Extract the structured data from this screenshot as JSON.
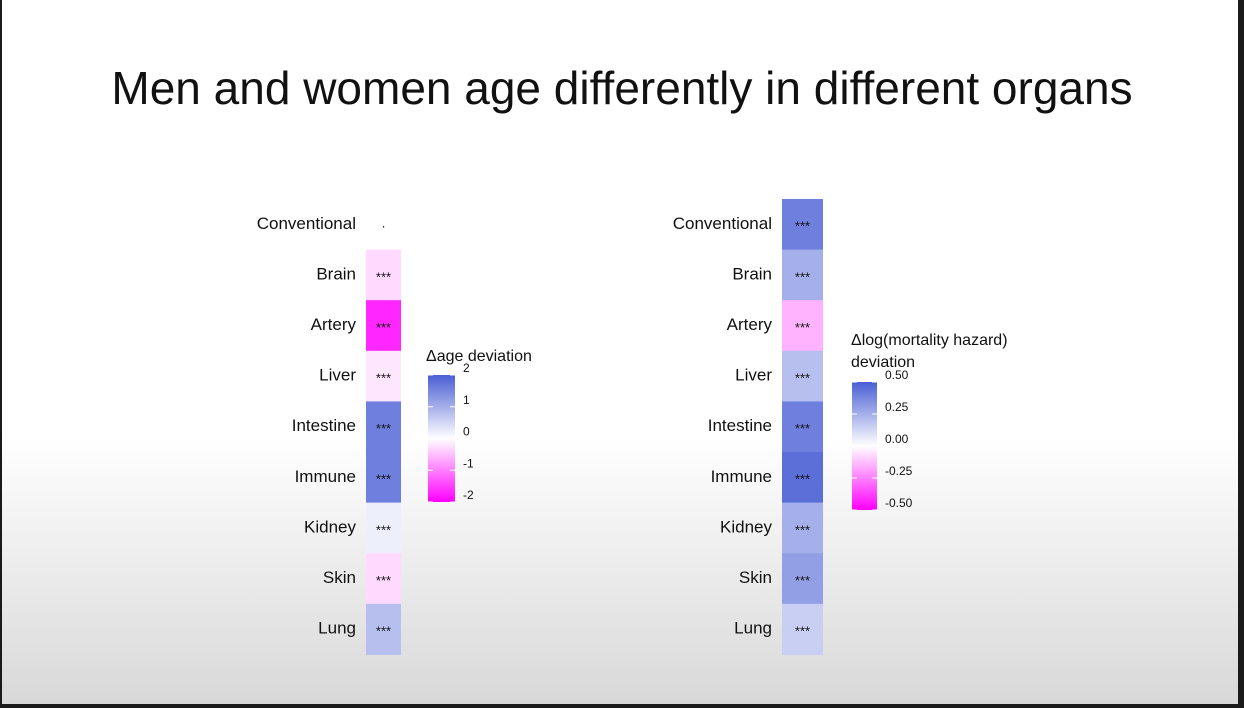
{
  "slide": {
    "title": "Men and women age differently in different organs"
  },
  "chart_data": [
    {
      "type": "heatmap",
      "categories": [
        "Conventional",
        "Brain",
        "Artery",
        "Liver",
        "Intestine",
        "Immune",
        "Kidney",
        "Skin",
        "Lung"
      ],
      "values": [
        0,
        -0.3,
        -1.7,
        -0.2,
        1.6,
        1.6,
        0.2,
        -0.3,
        0.8
      ],
      "annotations": [
        "·",
        "***",
        "***",
        "***",
        "***",
        "***",
        "***",
        "***",
        "***"
      ],
      "legend_title": [
        "Δage deviation"
      ],
      "colors": {
        "low": "#ff00ff",
        "mid": "#ffffff",
        "high": "#4a5fd4"
      },
      "clim": [
        -2,
        2
      ],
      "cticks": [
        2,
        1,
        0,
        -1,
        -2
      ]
    },
    {
      "type": "heatmap",
      "categories": [
        "Conventional",
        "Brain",
        "Artery",
        "Liver",
        "Intestine",
        "Immune",
        "Kidney",
        "Skin",
        "Lung"
      ],
      "values": [
        0.4,
        0.25,
        -0.15,
        0.2,
        0.4,
        0.45,
        0.25,
        0.3,
        0.15
      ],
      "annotations": [
        "***",
        "***",
        "***",
        "***",
        "***",
        "***",
        "***",
        "***",
        "***"
      ],
      "legend_title": [
        "Δlog(mortality hazard)",
        "deviation"
      ],
      "colors": {
        "low": "#ff00ff",
        "mid": "#ffffff",
        "high": "#4a5fd4"
      },
      "clim": [
        -0.5,
        0.5
      ],
      "cticks": [
        {
          "value": 0.5,
          "label": "0.50"
        },
        0.25,
        {
          "value": 0,
          "label": "0.00"
        },
        -0.25,
        {
          "value": -0.5,
          "label": "-0.50"
        }
      ]
    }
  ]
}
